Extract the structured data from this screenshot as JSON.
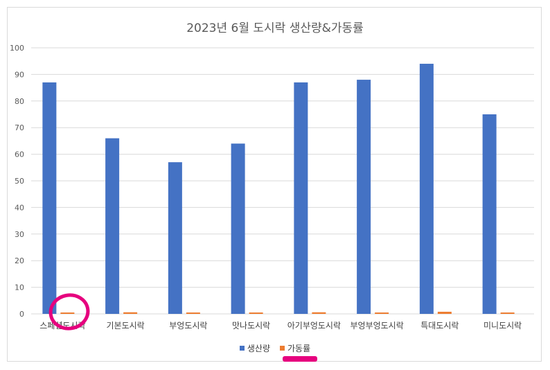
{
  "colors": {
    "series1": "#4472C4",
    "series2": "#ED7D31",
    "grid": "#D9D9D9",
    "annotation": "#E6007E"
  },
  "chart_data": {
    "type": "bar",
    "title": "2023년 6월 도시락 생산량&가동률",
    "categories": [
      "스페셜도시락",
      "기본도시락",
      "부엉도시락",
      "맛나도시락",
      "아기부엉도시락",
      "부엉부엉도시락",
      "특대도시락",
      "미니도시락"
    ],
    "series": [
      {
        "name": "생산량",
        "values": [
          87,
          66,
          57,
          64,
          87,
          88,
          94,
          75
        ]
      },
      {
        "name": "가동률",
        "values": [
          0.5,
          0.6,
          0.3,
          0.5,
          0.6,
          0.5,
          0.8,
          0.5
        ]
      }
    ],
    "ylim": [
      0,
      100
    ],
    "yticks": [
      0,
      10,
      20,
      30,
      40,
      50,
      60,
      70,
      80,
      90,
      100
    ],
    "grid": true,
    "legend_position": "bottom"
  }
}
